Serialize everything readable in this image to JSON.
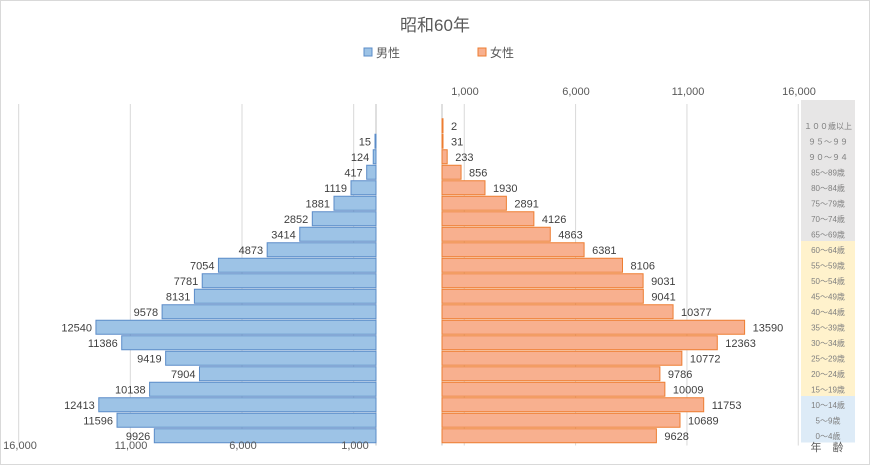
{
  "chart_data": {
    "type": "bar",
    "title": "昭和60年",
    "legend": [
      "男性",
      "女性"
    ],
    "legend_position": "top",
    "age_axis_title": "年　齢",
    "categories": [
      "１００歳以上",
      "９５～９９",
      "９０～９４",
      "85～89歳",
      "80～84歳",
      "75～79歳",
      "70～74歳",
      "65～69歳",
      "60～64歳",
      "55～59歳",
      "50～54歳",
      "45～49歳",
      "40～44歳",
      "35～39歳",
      "30～34歳",
      "25～29歳",
      "20～24歳",
      "15～19歳",
      "10～14歳",
      "5～9歳",
      "0～4歳"
    ],
    "series": [
      {
        "name": "男性",
        "values": [
          null,
          15,
          124,
          417,
          1119,
          1881,
          2852,
          3414,
          4873,
          7054,
          7781,
          8131,
          9578,
          12540,
          11386,
          9419,
          7904,
          10138,
          12413,
          11596,
          9926
        ]
      },
      {
        "name": "女性",
        "values": [
          2,
          31,
          233,
          856,
          1930,
          2891,
          4126,
          4863,
          6381,
          8106,
          9031,
          9041,
          10377,
          13590,
          12363,
          10772,
          9786,
          10009,
          11753,
          10689,
          9628
        ]
      }
    ],
    "male_ticks": [
      "16,000",
      "11,000",
      "6,000",
      "1,000"
    ],
    "female_ticks": [
      "1,000",
      "6,000",
      "11,000",
      "16,000"
    ],
    "xlim": [
      0,
      16000
    ],
    "grid": true,
    "colors": {
      "male_fill": "#9dc3e6",
      "male_stroke": "#5b8cc8",
      "female_fill": "#f8b08f",
      "female_stroke": "#ed7d31",
      "band_old": "#e7e6e6",
      "band_working": "#fff2cc",
      "band_young": "#ddebf7"
    }
  }
}
